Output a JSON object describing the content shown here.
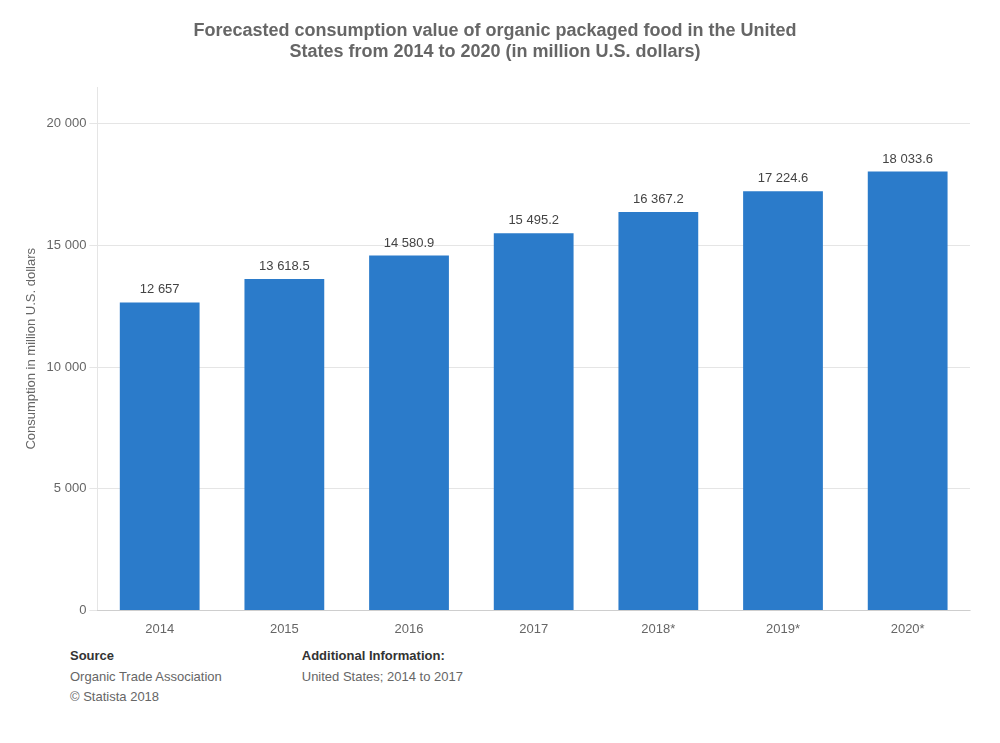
{
  "chart_data": {
    "type": "bar",
    "title": "Forecasted consumption value of organic packaged food in the United\nStates from 2014 to 2020 (in million U.S. dollars)",
    "categories": [
      "2014",
      "2015",
      "2016",
      "2017",
      "2018*",
      "2019*",
      "2020*"
    ],
    "values": [
      12657,
      13618.5,
      14580.9,
      15495.2,
      16367.2,
      17224.6,
      18033.6
    ],
    "value_labels": [
      "12 657",
      "13 618.5",
      "14 580.9",
      "15 495.2",
      "16 367.2",
      "17 224.6",
      "18 033.6"
    ],
    "data_labels": true,
    "color": "#2b7bca",
    "ylabel": "Consumption in million U.S. dollars",
    "ylim": [
      0,
      21500
    ],
    "yticks": [
      0,
      {
        "value": 5000,
        "label": "5 000"
      },
      {
        "value": 10000,
        "label": "10 000"
      },
      {
        "value": 15000,
        "label": "15 000"
      },
      {
        "value": 20000,
        "label": "20 000"
      }
    ],
    "grid": true,
    "annotations": [
      {
        "heading": "Source",
        "lines": [
          "Organic Trade Association",
          "© Statista 2018"
        ]
      },
      {
        "heading": "Additional Information:",
        "lines": [
          "United States; 2014 to 2017"
        ]
      }
    ]
  }
}
